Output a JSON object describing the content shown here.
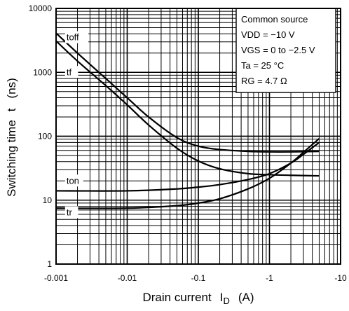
{
  "chart_data": {
    "type": "line",
    "x_scale": "log",
    "y_scale": "log",
    "xlim": [
      -0.001,
      -10
    ],
    "ylim": [
      1,
      10000
    ],
    "grid": true,
    "xlabel": "Drain current",
    "xlabel_symbol": "I",
    "xlabel_subscript": "D",
    "xlabel_unit": "(A)",
    "ylabel": "Switching time",
    "ylabel_symbol": "t",
    "ylabel_unit": "(ns)",
    "x_ticks": [
      "-0.001",
      "-0.01",
      "-0.1",
      "-1",
      "-10"
    ],
    "y_ticks": [
      "1",
      "10",
      "100",
      "1000",
      "10000"
    ],
    "conditions": [
      "Common source",
      "VDD = −10 V",
      "VGS = 0 to −2.5 V",
      "Ta = 25 °C",
      "RG = 4.7 Ω"
    ],
    "series": [
      {
        "name": "toff",
        "points": [
          [
            -0.001,
            4100
          ],
          [
            -0.002,
            2000
          ],
          [
            -0.005,
            800
          ],
          [
            -0.01,
            400
          ],
          [
            -0.02,
            200
          ],
          [
            -0.05,
            95
          ],
          [
            -0.1,
            70
          ],
          [
            -0.2,
            62
          ],
          [
            -0.5,
            58
          ],
          [
            -1,
            57
          ],
          [
            -2,
            57
          ],
          [
            -5,
            58
          ]
        ]
      },
      {
        "name": "tf",
        "points": [
          [
            -0.001,
            3100
          ],
          [
            -0.002,
            1500
          ],
          [
            -0.005,
            620
          ],
          [
            -0.01,
            310
          ],
          [
            -0.02,
            150
          ],
          [
            -0.05,
            65
          ],
          [
            -0.1,
            41
          ],
          [
            -0.2,
            31
          ],
          [
            -0.5,
            26
          ],
          [
            -1,
            25
          ],
          [
            -2,
            24.5
          ],
          [
            -5,
            24
          ]
        ]
      },
      {
        "name": "ton",
        "points": [
          [
            -0.001,
            14
          ],
          [
            -0.01,
            14
          ],
          [
            -0.05,
            15
          ],
          [
            -0.1,
            16
          ],
          [
            -0.2,
            17.5
          ],
          [
            -0.5,
            21
          ],
          [
            -1,
            26
          ],
          [
            -2,
            38
          ],
          [
            -3,
            52
          ],
          [
            -5,
            80
          ]
        ]
      },
      {
        "name": "tr",
        "points": [
          [
            -0.001,
            7.5
          ],
          [
            -0.01,
            7.5
          ],
          [
            -0.05,
            8.2
          ],
          [
            -0.1,
            9
          ],
          [
            -0.2,
            10.5
          ],
          [
            -0.5,
            15
          ],
          [
            -1,
            22
          ],
          [
            -2,
            38
          ],
          [
            -3,
            56
          ],
          [
            -5,
            92
          ]
        ]
      }
    ]
  }
}
